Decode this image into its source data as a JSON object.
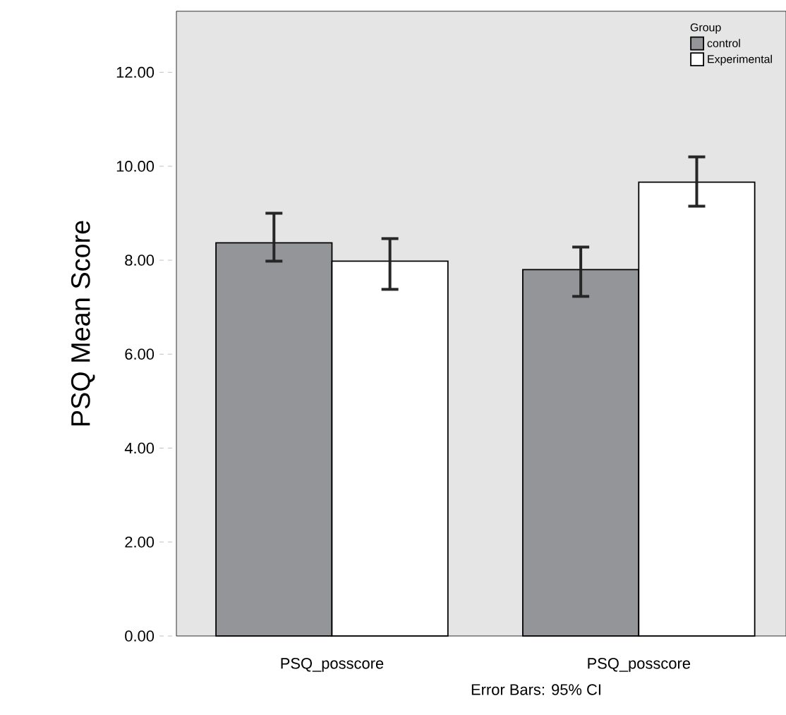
{
  "chart_data": {
    "type": "bar",
    "ylabel": "PSQ Mean Score",
    "legend_title": "Group",
    "annotations": [
      "Error Bars: 95% CI"
    ],
    "categories": [
      "PSQ_posscore",
      "PSQ_posscore"
    ],
    "series": [
      {
        "name": "control",
        "color": "#939598",
        "values": [
          8.37,
          7.8
        ],
        "errors": [
          [
            7.98,
            9.0
          ],
          [
            7.23,
            8.28
          ]
        ]
      },
      {
        "name": "Experimental",
        "color": "#ffffff",
        "values": [
          7.98,
          9.66
        ],
        "errors": [
          [
            7.38,
            8.46
          ],
          [
            9.15,
            10.2
          ]
        ]
      }
    ],
    "ylim": [
      0,
      13.3
    ],
    "yticks": [
      {
        "value": 0,
        "label": "0.00"
      },
      {
        "value": 2,
        "label": "2.00"
      },
      {
        "value": 4,
        "label": "4.00"
      },
      {
        "value": 6,
        "label": "6.00"
      },
      {
        "value": 8,
        "label": "8.00"
      },
      {
        "value": 10,
        "label": "10.00"
      },
      {
        "value": 12,
        "label": "12.00"
      }
    ],
    "legend": "top right"
  }
}
